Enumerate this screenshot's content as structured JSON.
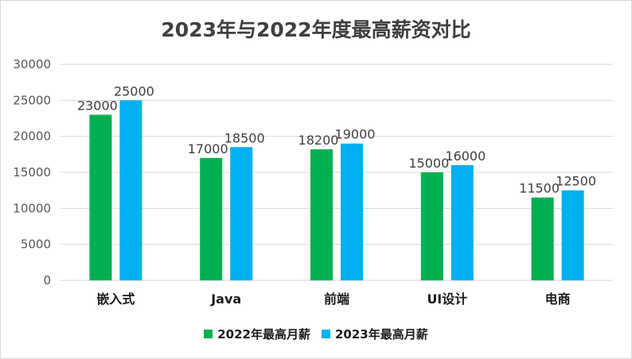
{
  "chart_data": {
    "type": "bar",
    "title": "2023年与2022年度最高薪资对比",
    "categories": [
      "嵌入式",
      "Java",
      "前端",
      "UI设计",
      "电商"
    ],
    "series": [
      {
        "name": "2022年最高月薪",
        "values": [
          23000,
          17000,
          18200,
          15000,
          11500
        ],
        "color": "#00b050"
      },
      {
        "name": "2023年最高月薪",
        "values": [
          25000,
          18500,
          19000,
          16000,
          12500
        ],
        "color": "#00b0f0"
      }
    ],
    "ylim": [
      0,
      30000
    ],
    "yticks": [
      0,
      5000,
      10000,
      15000,
      20000,
      25000,
      30000
    ],
    "grid": true,
    "legend": "bottom",
    "xlabel": "",
    "ylabel": ""
  }
}
